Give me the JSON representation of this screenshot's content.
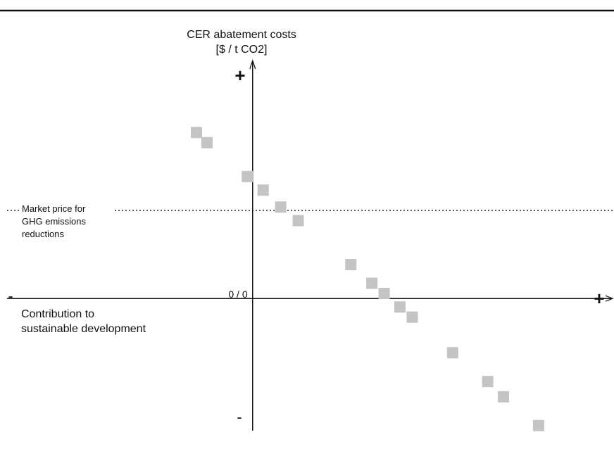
{
  "chart_data": {
    "type": "scatter",
    "ylabel": [
      "CER abatement costs",
      "[$ / t CO2]"
    ],
    "xlabel": [
      "Contribution to",
      "sustainable development"
    ],
    "origin_label": "0 / 0",
    "y_positive_label": "+",
    "y_negative_label": "-",
    "x_positive_label": "+",
    "x_negative_label": "-",
    "reference_line": {
      "label": [
        "Market price for",
        "GHG emissions",
        "reductions"
      ],
      "y": 2.6,
      "style": "dotted"
    },
    "xlim": [
      -7.2,
      10.3
    ],
    "ylim": [
      -3.9,
      6.9
    ],
    "grid": false,
    "legend": "none",
    "marker_color": "#c4c4c4",
    "points": [
      {
        "x": -1.6,
        "y": 4.9
      },
      {
        "x": -1.3,
        "y": 4.6
      },
      {
        "x": -0.15,
        "y": 3.6
      },
      {
        "x": 0.3,
        "y": 3.2
      },
      {
        "x": 0.8,
        "y": 2.7
      },
      {
        "x": 1.3,
        "y": 2.3
      },
      {
        "x": 2.8,
        "y": 1.0
      },
      {
        "x": 3.4,
        "y": 0.45
      },
      {
        "x": 3.75,
        "y": 0.15
      },
      {
        "x": 4.2,
        "y": -0.25
      },
      {
        "x": 4.55,
        "y": -0.55
      },
      {
        "x": 5.7,
        "y": -1.6
      },
      {
        "x": 6.7,
        "y": -2.45
      },
      {
        "x": 7.15,
        "y": -2.9
      },
      {
        "x": 8.15,
        "y": -3.75
      }
    ]
  }
}
